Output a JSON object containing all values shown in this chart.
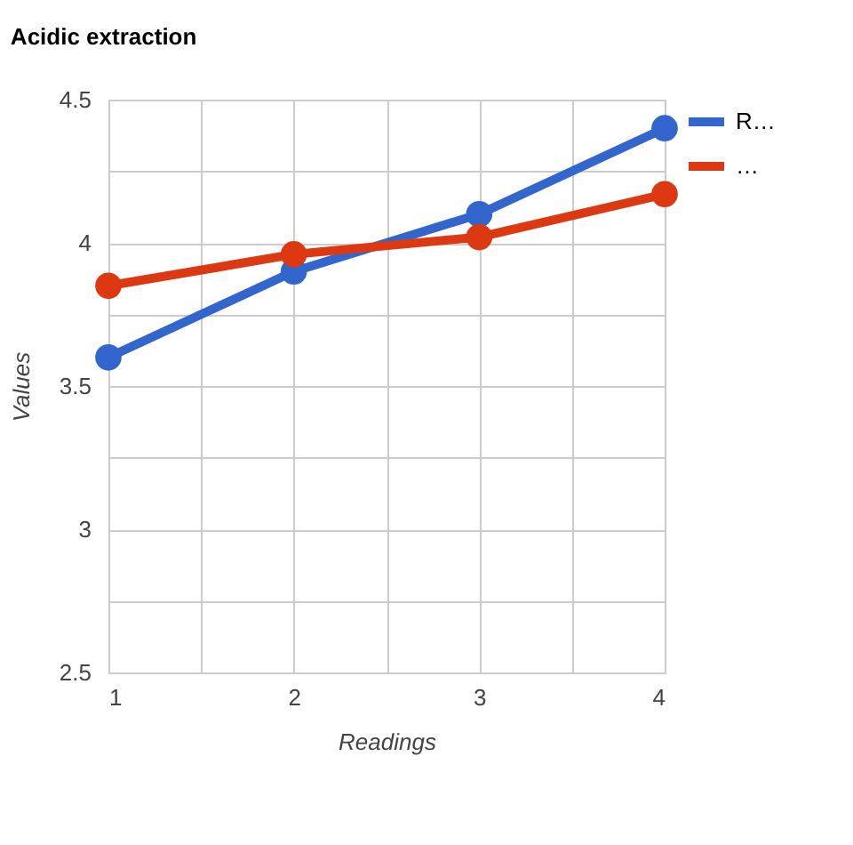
{
  "chart_data": {
    "type": "line",
    "title": "Acidic extraction",
    "xlabel": "Readings",
    "ylabel": "Values",
    "x": [
      1,
      2,
      3,
      4
    ],
    "series": [
      {
        "name": "R…",
        "color": "#3366cc",
        "values": [
          3.6,
          3.9,
          4.1,
          4.4
        ]
      },
      {
        "name": "…",
        "color": "#dc3912",
        "values": [
          3.85,
          3.96,
          4.02,
          4.17
        ]
      }
    ],
    "xlim": [
      1,
      4
    ],
    "xticks": [
      1,
      {
        "value": 1.5,
        "label": null
      },
      2,
      {
        "value": 2.5,
        "label": null
      },
      3,
      {
        "value": 3.5,
        "label": null
      },
      4
    ],
    "ylim": [
      2.5,
      4.5
    ],
    "yticks": [
      2.5,
      {
        "value": 2.75,
        "label": null
      },
      3,
      {
        "value": 3.25,
        "label": null
      },
      3.5,
      {
        "value": 3.75,
        "label": null
      },
      4,
      {
        "value": 4.25,
        "label": null
      },
      4.5
    ],
    "grid": true,
    "legend": "top right",
    "marker": "circle",
    "line_style": "solid"
  }
}
